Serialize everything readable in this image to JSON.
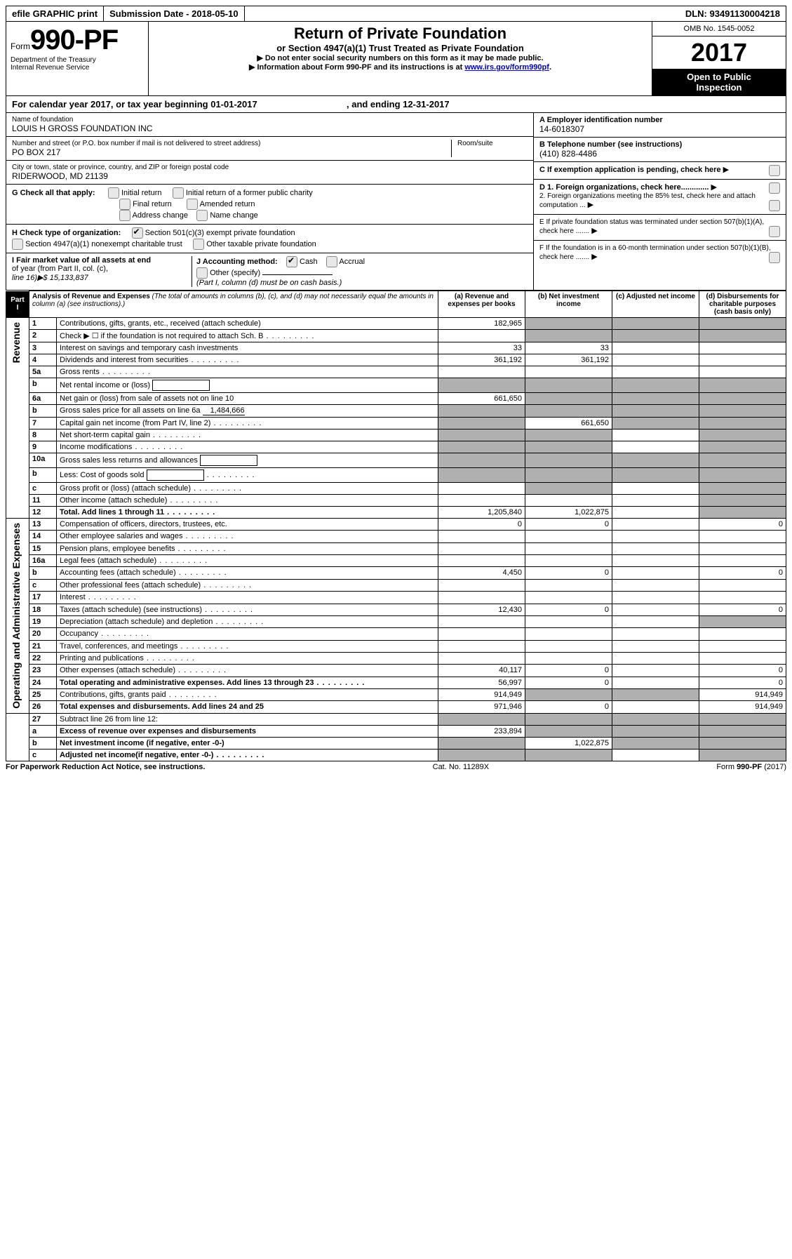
{
  "topbar": {
    "btn_efile": "efile GRAPHIC print",
    "submission_label": "Submission Date - 2018-05-10",
    "dln": "DLN: 93491130004218"
  },
  "header": {
    "form_prefix": "Form",
    "form_number": "990-PF",
    "dept1": "Department of the Treasury",
    "dept2": "Internal Revenue Service",
    "title": "Return of Private Foundation",
    "subtitle": "or Section 4947(a)(1) Trust Treated as Private Foundation",
    "note1": "▶ Do not enter social security numbers on this form as it may be made public.",
    "note2_prefix": "▶ Information about Form 990-PF and its instructions is at ",
    "note2_link": "www.irs.gov/form990pf",
    "note2_suffix": ".",
    "omb": "OMB No. 1545-0052",
    "year": "2017",
    "open1": "Open to Public",
    "open2": "Inspection"
  },
  "calyear": {
    "text": "For calendar year 2017, or tax year beginning 01-01-2017",
    "mid": ", and ending 12-31-2017"
  },
  "identity": {
    "name_label": "Name of foundation",
    "name_value": "LOUIS H GROSS FOUNDATION INC",
    "street_label1": "Number and street (or P.O. box number if mail is not delivered to street address)",
    "street_label2": "Room/suite",
    "street_value": "PO BOX 217",
    "city_label": "City or town, state or province, country, and ZIP or foreign postal code",
    "city_value": "RIDERWOOD, MD  21139",
    "g_label": "G Check all that apply:",
    "g_opts": [
      "Initial return",
      "Initial return of a former public charity",
      "Final return",
      "Amended return",
      "Address change",
      "Name change"
    ],
    "h_label": "H Check type of organization:",
    "h_opts": [
      "Section 501(c)(3) exempt private foundation",
      "Section 4947(a)(1) nonexempt charitable trust",
      "Other taxable private foundation"
    ],
    "i_label1": "I Fair market value of all assets at end",
    "i_label2": "of year (from Part II, col. (c),",
    "i_label3": "line 16)▶$  15,133,837",
    "j_label": "J Accounting method:",
    "j_opts": [
      "Cash",
      "Accrual"
    ],
    "j_other": "Other (specify)",
    "j_note": "(Part I, column (d) must be on cash basis.)",
    "a_label": "A Employer identification number",
    "a_value": "14-6018307",
    "b_label": "B Telephone number (see instructions)",
    "b_value": "(410) 828-4486",
    "c_label": "C If exemption application is pending, check here",
    "d1_label": "D 1. Foreign organizations, check here.............",
    "d2_label": "2. Foreign organizations meeting the 85% test, check here and attach computation ...",
    "e_label": "E  If private foundation status was terminated under section 507(b)(1)(A), check here .......",
    "f_label": "F  If the foundation is in a 60-month termination under section 507(b)(1)(B), check here .......",
    "arrow": "▶"
  },
  "part1": {
    "label": "Part I",
    "title": "Analysis of Revenue and Expenses",
    "note": " (The total of amounts in columns (b), (c), and (d) may not necessarily equal the amounts in column (a) (see instructions).)",
    "col_a": "(a)   Revenue and expenses per books",
    "col_b": "(b)   Net investment income",
    "col_c": "(c)  Adjusted net income",
    "col_d": "(d)  Disbursements for charitable purposes (cash basis only)",
    "side_revenue": "Revenue",
    "side_expenses": "Operating and Administrative Expenses"
  },
  "rows": [
    {
      "n": "1",
      "desc": "Contributions, gifts, grants, etc., received (attach schedule)",
      "a": "182,965",
      "shadeB": true,
      "shadeC": true,
      "shadeD": true
    },
    {
      "n": "2",
      "desc": "Check ▶ ☐ if the foundation is not required to attach Sch. B",
      "dots": true,
      "shadeB": true,
      "shadeC": true,
      "shadeD": true
    },
    {
      "n": "3",
      "desc": "Interest on savings and temporary cash investments",
      "a": "33",
      "b": "33"
    },
    {
      "n": "4",
      "desc": "Dividends and interest from securities",
      "dots": true,
      "a": "361,192",
      "b": "361,192"
    },
    {
      "n": "5a",
      "desc": "Gross rents",
      "dots": true
    },
    {
      "n": "b",
      "desc": "Net rental income or (loss)",
      "box": true,
      "shadeA": true,
      "shadeB": true,
      "shadeC": true,
      "shadeD": true
    },
    {
      "n": "6a",
      "desc": "Net gain or (loss) from sale of assets not on line 10",
      "a": "661,650",
      "shadeB": true,
      "shadeC": true,
      "shadeD": true
    },
    {
      "n": "b",
      "desc": "Gross sales price for all assets on line 6a",
      "inline": "1,484,666",
      "shadeA": true,
      "shadeB": true,
      "shadeC": true,
      "shadeD": true
    },
    {
      "n": "7",
      "desc": "Capital gain net income (from Part IV, line 2)",
      "dots": true,
      "shadeA": true,
      "b": "661,650",
      "shadeC": true,
      "shadeD": true
    },
    {
      "n": "8",
      "desc": "Net short-term capital gain",
      "dots": true,
      "shadeA": true,
      "shadeB": true,
      "shadeD": true
    },
    {
      "n": "9",
      "desc": "Income modifications",
      "dots": true,
      "shadeA": true,
      "shadeB": true,
      "shadeD": true
    },
    {
      "n": "10a",
      "desc": "Gross sales less returns and allowances",
      "box": true,
      "shadeA": true,
      "shadeB": true,
      "shadeC": true,
      "shadeD": true
    },
    {
      "n": "b",
      "desc": "Less: Cost of goods sold",
      "dots": true,
      "box": true,
      "shadeA": true,
      "shadeB": true,
      "shadeC": true,
      "shadeD": true
    },
    {
      "n": "c",
      "desc": "Gross profit or (loss) (attach schedule)",
      "dots": true,
      "shadeB": true,
      "shadeD": true
    },
    {
      "n": "11",
      "desc": "Other income (attach schedule)",
      "dots": true,
      "shadeD": true
    },
    {
      "n": "12",
      "desc": "Total. Add lines 1 through 11",
      "bold": true,
      "dots": true,
      "a": "1,205,840",
      "b": "1,022,875",
      "shadeD": true
    }
  ],
  "rows2": [
    {
      "n": "13",
      "desc": "Compensation of officers, directors, trustees, etc.",
      "a": "0",
      "b": "0",
      "d": "0"
    },
    {
      "n": "14",
      "desc": "Other employee salaries and wages",
      "dots": true
    },
    {
      "n": "15",
      "desc": "Pension plans, employee benefits",
      "dots": true
    },
    {
      "n": "16a",
      "desc": "Legal fees (attach schedule)",
      "dots": true
    },
    {
      "n": "b",
      "desc": "Accounting fees (attach schedule)",
      "dots": true,
      "a": "4,450",
      "b": "0",
      "d": "0"
    },
    {
      "n": "c",
      "desc": "Other professional fees (attach schedule)",
      "dots": true
    },
    {
      "n": "17",
      "desc": "Interest",
      "dots": true
    },
    {
      "n": "18",
      "desc": "Taxes (attach schedule) (see instructions)",
      "dots": true,
      "a": "12,430",
      "b": "0",
      "d": "0"
    },
    {
      "n": "19",
      "desc": "Depreciation (attach schedule) and depletion",
      "dots": true,
      "shadeD": true
    },
    {
      "n": "20",
      "desc": "Occupancy",
      "dots": true
    },
    {
      "n": "21",
      "desc": "Travel, conferences, and meetings",
      "dots": true
    },
    {
      "n": "22",
      "desc": "Printing and publications",
      "dots": true
    },
    {
      "n": "23",
      "desc": "Other expenses (attach schedule)",
      "dots": true,
      "a": "40,117",
      "b": "0",
      "d": "0"
    },
    {
      "n": "24",
      "desc": "Total operating and administrative expenses. Add lines 13 through 23",
      "bold": true,
      "dots": true,
      "a": "56,997",
      "b": "0",
      "d": "0"
    },
    {
      "n": "25",
      "desc": "Contributions, gifts, grants paid",
      "dots": true,
      "a": "914,949",
      "shadeB": true,
      "shadeC": true,
      "d": "914,949"
    },
    {
      "n": "26",
      "desc": "Total expenses and disbursements. Add lines 24 and 25",
      "bold": true,
      "a": "971,946",
      "b": "0",
      "d": "914,949"
    }
  ],
  "rows3": [
    {
      "n": "27",
      "desc": "Subtract line 26 from line 12:",
      "shadeA": true,
      "shadeB": true,
      "shadeC": true,
      "shadeD": true
    },
    {
      "n": "a",
      "desc": "Excess of revenue over expenses and disbursements",
      "bold": true,
      "a": "233,894",
      "shadeB": true,
      "shadeC": true,
      "shadeD": true
    },
    {
      "n": "b",
      "desc": "Net investment income (if negative, enter -0-)",
      "bold": true,
      "shadeA": true,
      "b": "1,022,875",
      "shadeC": true,
      "shadeD": true
    },
    {
      "n": "c",
      "desc": "Adjusted net income(if negative, enter -0-)",
      "bold": true,
      "dots": true,
      "shadeA": true,
      "shadeB": true,
      "shadeD": true
    }
  ],
  "footer": {
    "left": "For Paperwork Reduction Act Notice, see instructions.",
    "mid": "Cat. No. 11289X",
    "right": "Form 990-PF (2017)"
  }
}
